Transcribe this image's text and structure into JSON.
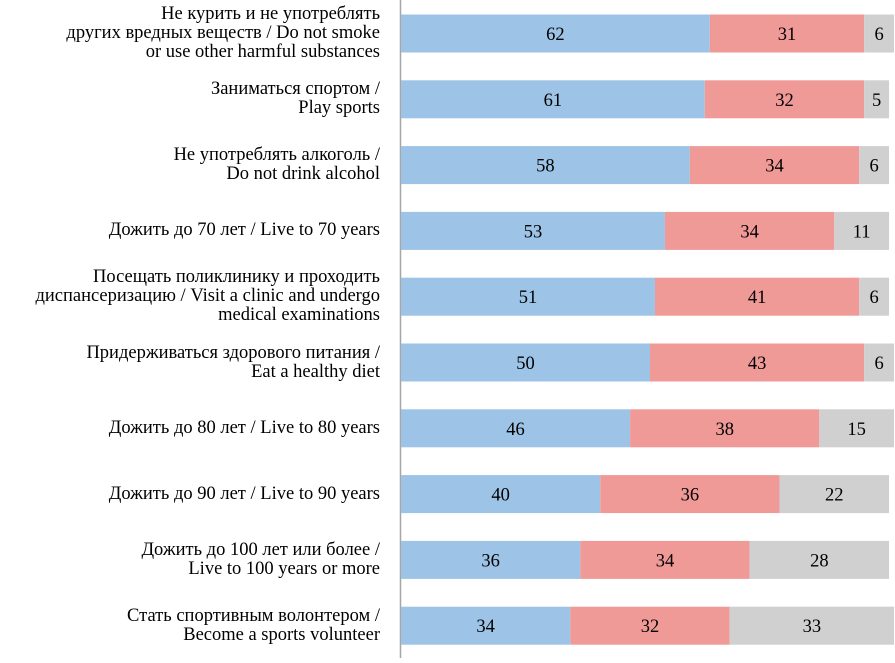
{
  "chart_data": {
    "type": "bar",
    "orientation": "horizontal",
    "stacked": true,
    "title": "",
    "xlabel": "",
    "ylabel": "",
    "xlim": [
      0,
      100
    ],
    "grid": false,
    "legend": "none",
    "categories": [
      [
        "Не курить и не употреблять",
        "других вредных веществ / Do not smoke",
        "or use other harmful substances"
      ],
      [
        "Заниматься спортом /",
        "Play sports"
      ],
      [
        "Не употреблять алкоголь /",
        "Do not drink alcohol"
      ],
      [
        "Дожить до 70 лет / Live to 70 years"
      ],
      [
        "Посещать поликлинику и проходить",
        "диспансеризацию  / Visit a clinic and undergo",
        "medical examinations"
      ],
      [
        "Придерживаться здорового питания /",
        "Eat a healthy diet"
      ],
      [
        "Дожить до 80 лет / Live to 80 years"
      ],
      [
        "Дожить до 90 лет / Live to 90 years"
      ],
      [
        "Дожить до 100 лет или более /",
        "Live to 100 years or more"
      ],
      [
        "Стать спортивным волонтером /",
        "Become a sports volunteer"
      ]
    ],
    "series": [
      {
        "name": "series-1",
        "color": "#9dc3e6",
        "values": [
          62,
          61,
          58,
          53,
          51,
          50,
          46,
          40,
          36,
          34
        ]
      },
      {
        "name": "series-2",
        "color": "#f09a98",
        "values": [
          31,
          32,
          34,
          34,
          41,
          43,
          38,
          36,
          34,
          32
        ]
      },
      {
        "name": "series-3",
        "color": "#d0d0d0",
        "values": [
          6,
          5,
          6,
          11,
          6,
          6,
          15,
          22,
          28,
          33
        ]
      }
    ]
  }
}
